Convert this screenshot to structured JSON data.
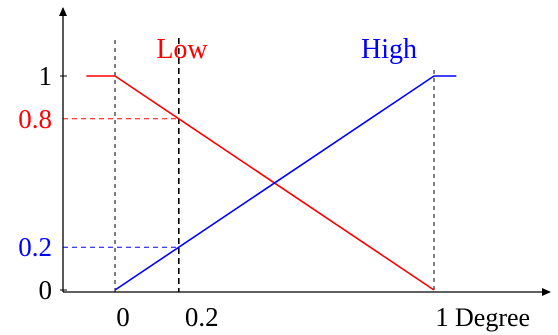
{
  "chart_data": {
    "type": "line",
    "title": "",
    "xlabel": "Degree",
    "ylabel": "",
    "xlim": [
      -0.2,
      1.1
    ],
    "ylim": [
      0,
      1.1
    ],
    "x_ticks": [
      {
        "value": 0,
        "label": "0"
      },
      {
        "value": 0.2,
        "label": "0.2"
      },
      {
        "value": 1,
        "label": "1"
      }
    ],
    "y_ticks": [
      {
        "value": 0,
        "label": "0",
        "color": "#000000"
      },
      {
        "value": 0.2,
        "label": "0.2",
        "color": "#0000ff"
      },
      {
        "value": 0.8,
        "label": "0.8",
        "color": "#ff0000"
      },
      {
        "value": 1,
        "label": "1",
        "color": "#000000"
      }
    ],
    "series": [
      {
        "name": "Low",
        "color": "#ff0000",
        "points": [
          [
            -0.09,
            1
          ],
          [
            0,
            1
          ],
          [
            1,
            0
          ]
        ]
      },
      {
        "name": "High",
        "color": "#0000ff",
        "points": [
          [
            0,
            0
          ],
          [
            1,
            1
          ],
          [
            1.07,
            1
          ]
        ]
      }
    ],
    "reference_x": 0.2,
    "grid": false,
    "legend": "series names written above each line"
  }
}
